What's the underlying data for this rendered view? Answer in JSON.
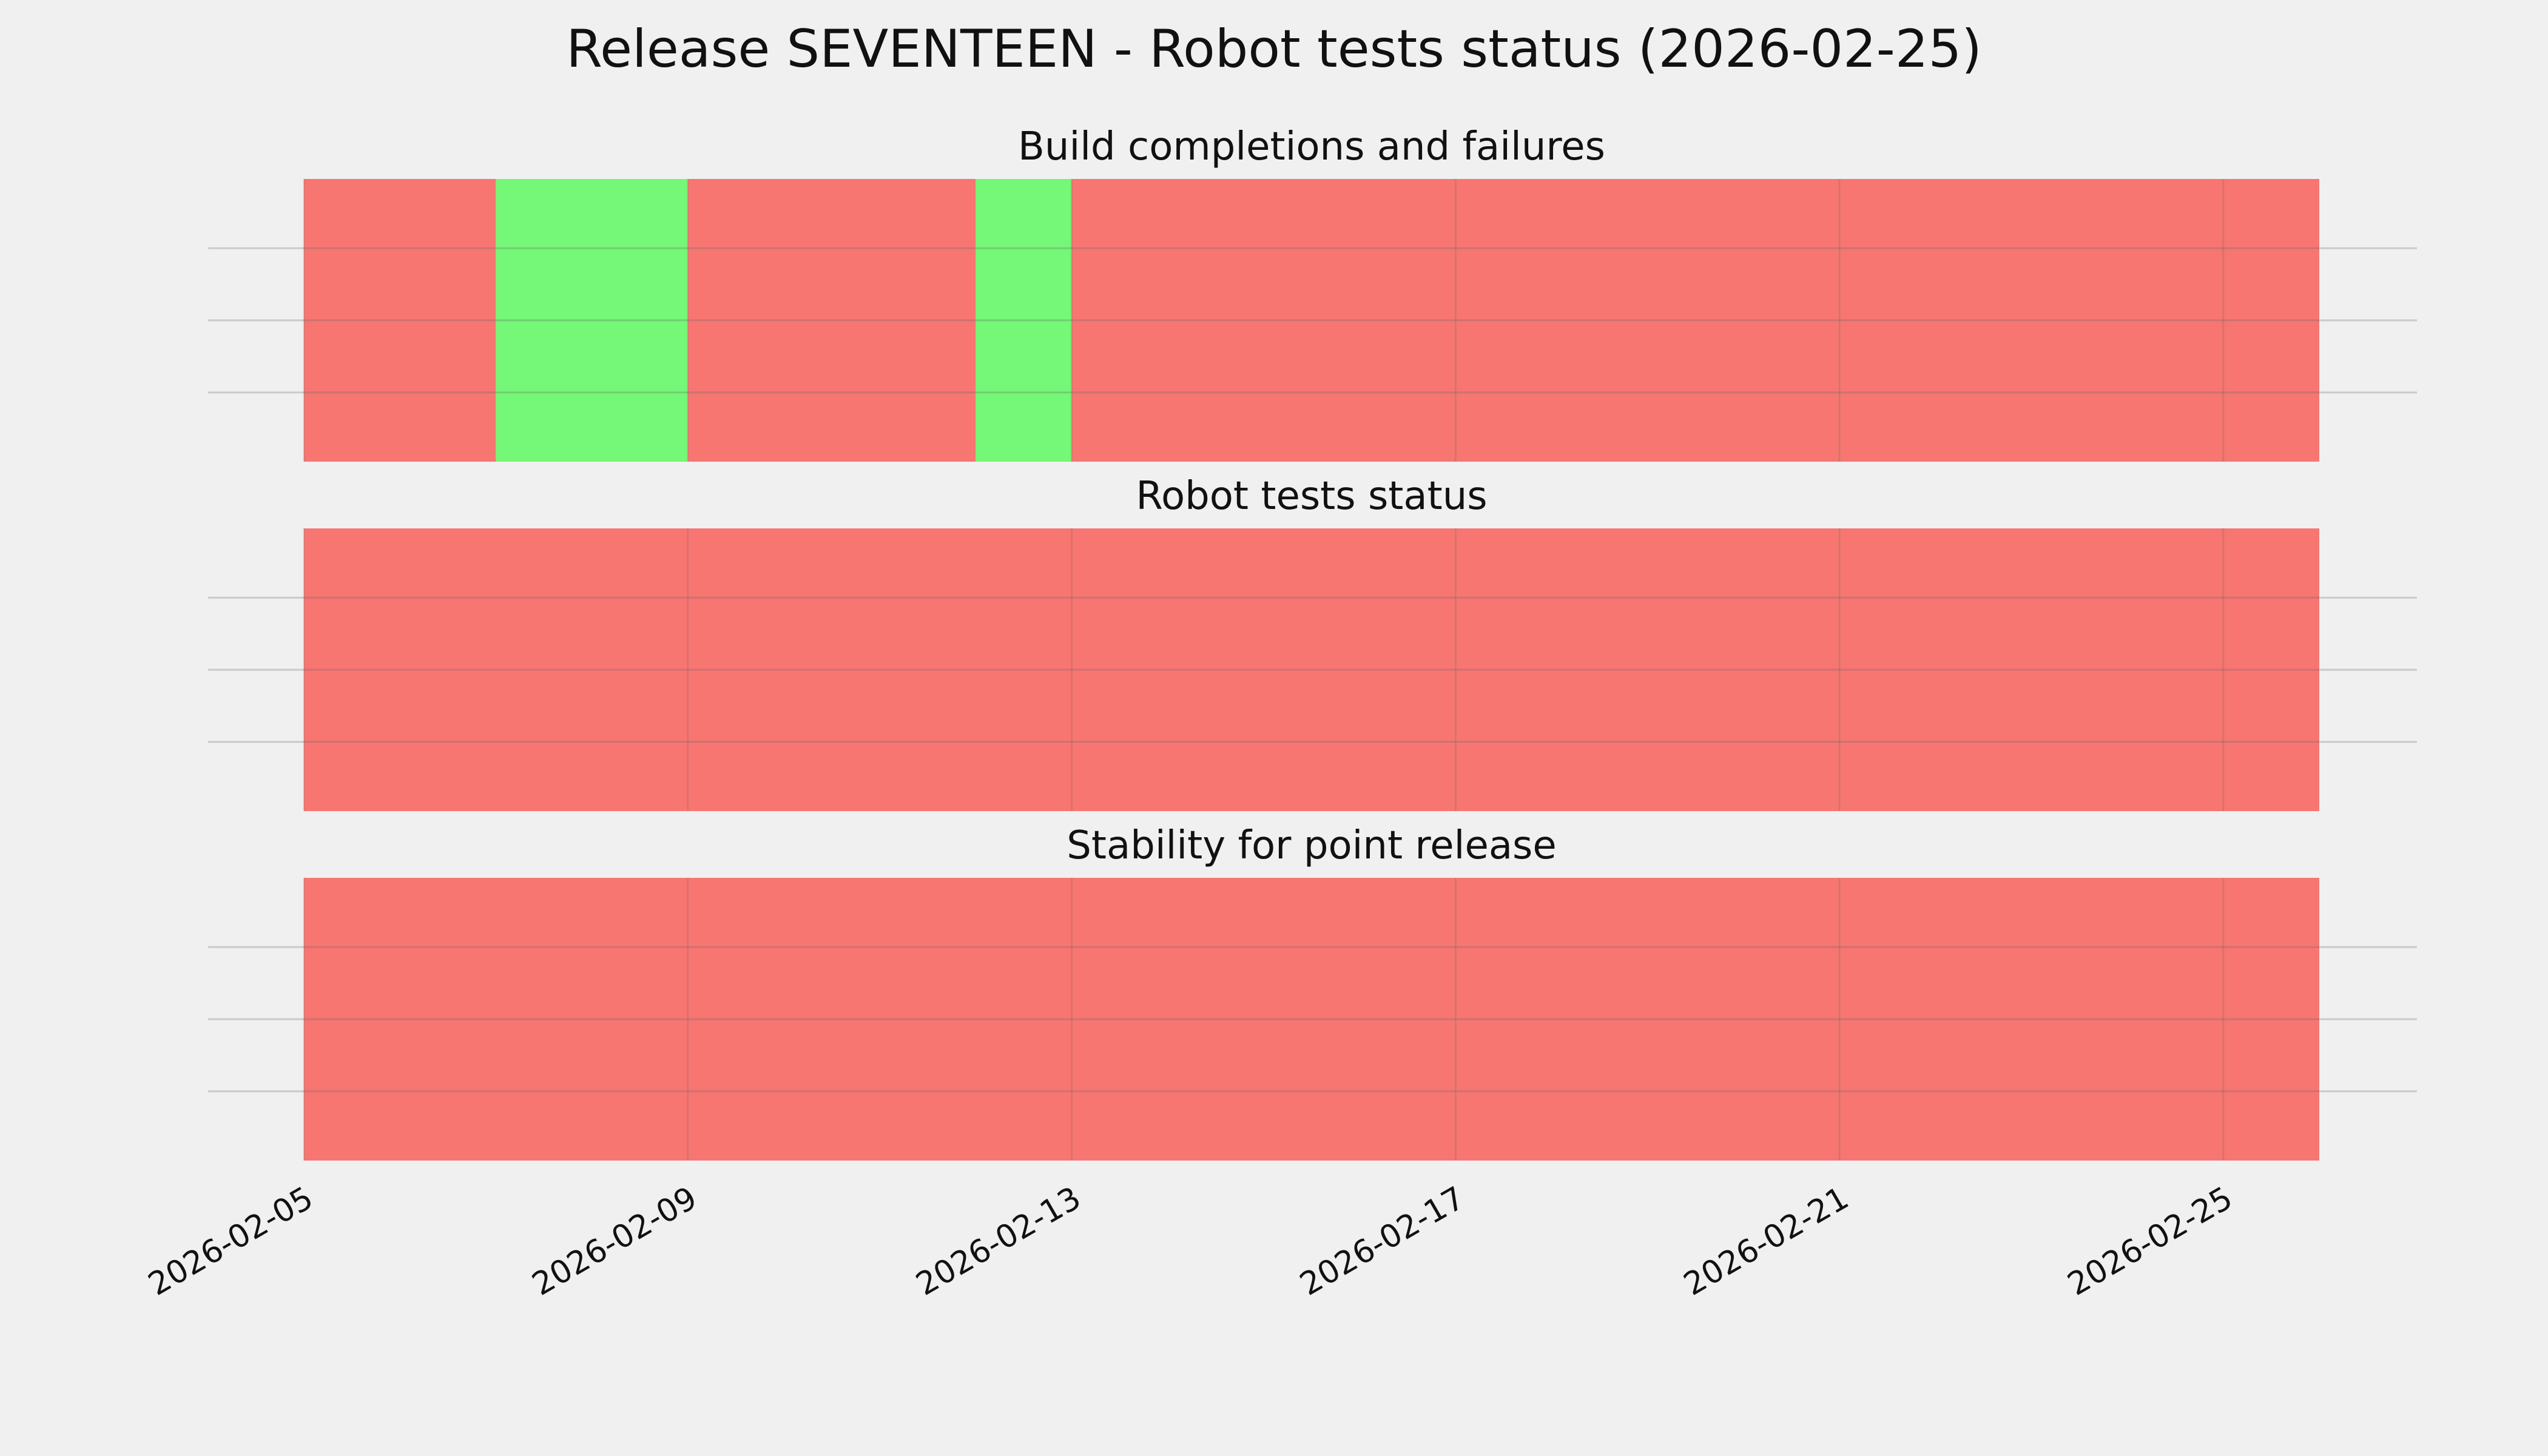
{
  "title": "Release SEVENTEEN - Robot tests status (2026-02-25)",
  "chart_data": [
    {
      "type": "span",
      "title": "Build completions and failures",
      "xlim": [
        "2026-02-05",
        "2026-02-26"
      ],
      "grid": true,
      "spans": [
        {
          "start": "2026-02-05",
          "end": "2026-02-07",
          "color": "#f77672"
        },
        {
          "start": "2026-02-07",
          "end": "2026-02-09",
          "color": "#75f777"
        },
        {
          "start": "2026-02-09",
          "end": "2026-02-12",
          "color": "#f77672"
        },
        {
          "start": "2026-02-12",
          "end": "2026-02-13",
          "color": "#75f777"
        },
        {
          "start": "2026-02-13",
          "end": "2026-02-26",
          "color": "#f77672"
        }
      ]
    },
    {
      "type": "span",
      "title": "Robot tests status",
      "xlim": [
        "2026-02-05",
        "2026-02-26"
      ],
      "grid": true,
      "spans": [
        {
          "start": "2026-02-05",
          "end": "2026-02-26",
          "color": "#f77672"
        }
      ]
    },
    {
      "type": "span",
      "title": "Stability for point release",
      "xlim": [
        "2026-02-05",
        "2026-02-26"
      ],
      "grid": true,
      "spans": [
        {
          "start": "2026-02-05",
          "end": "2026-02-26",
          "color": "#f77672"
        }
      ],
      "xticks": [
        "2026-02-05",
        "2026-02-09",
        "2026-02-13",
        "2026-02-17",
        "2026-02-21",
        "2026-02-25"
      ]
    }
  ]
}
